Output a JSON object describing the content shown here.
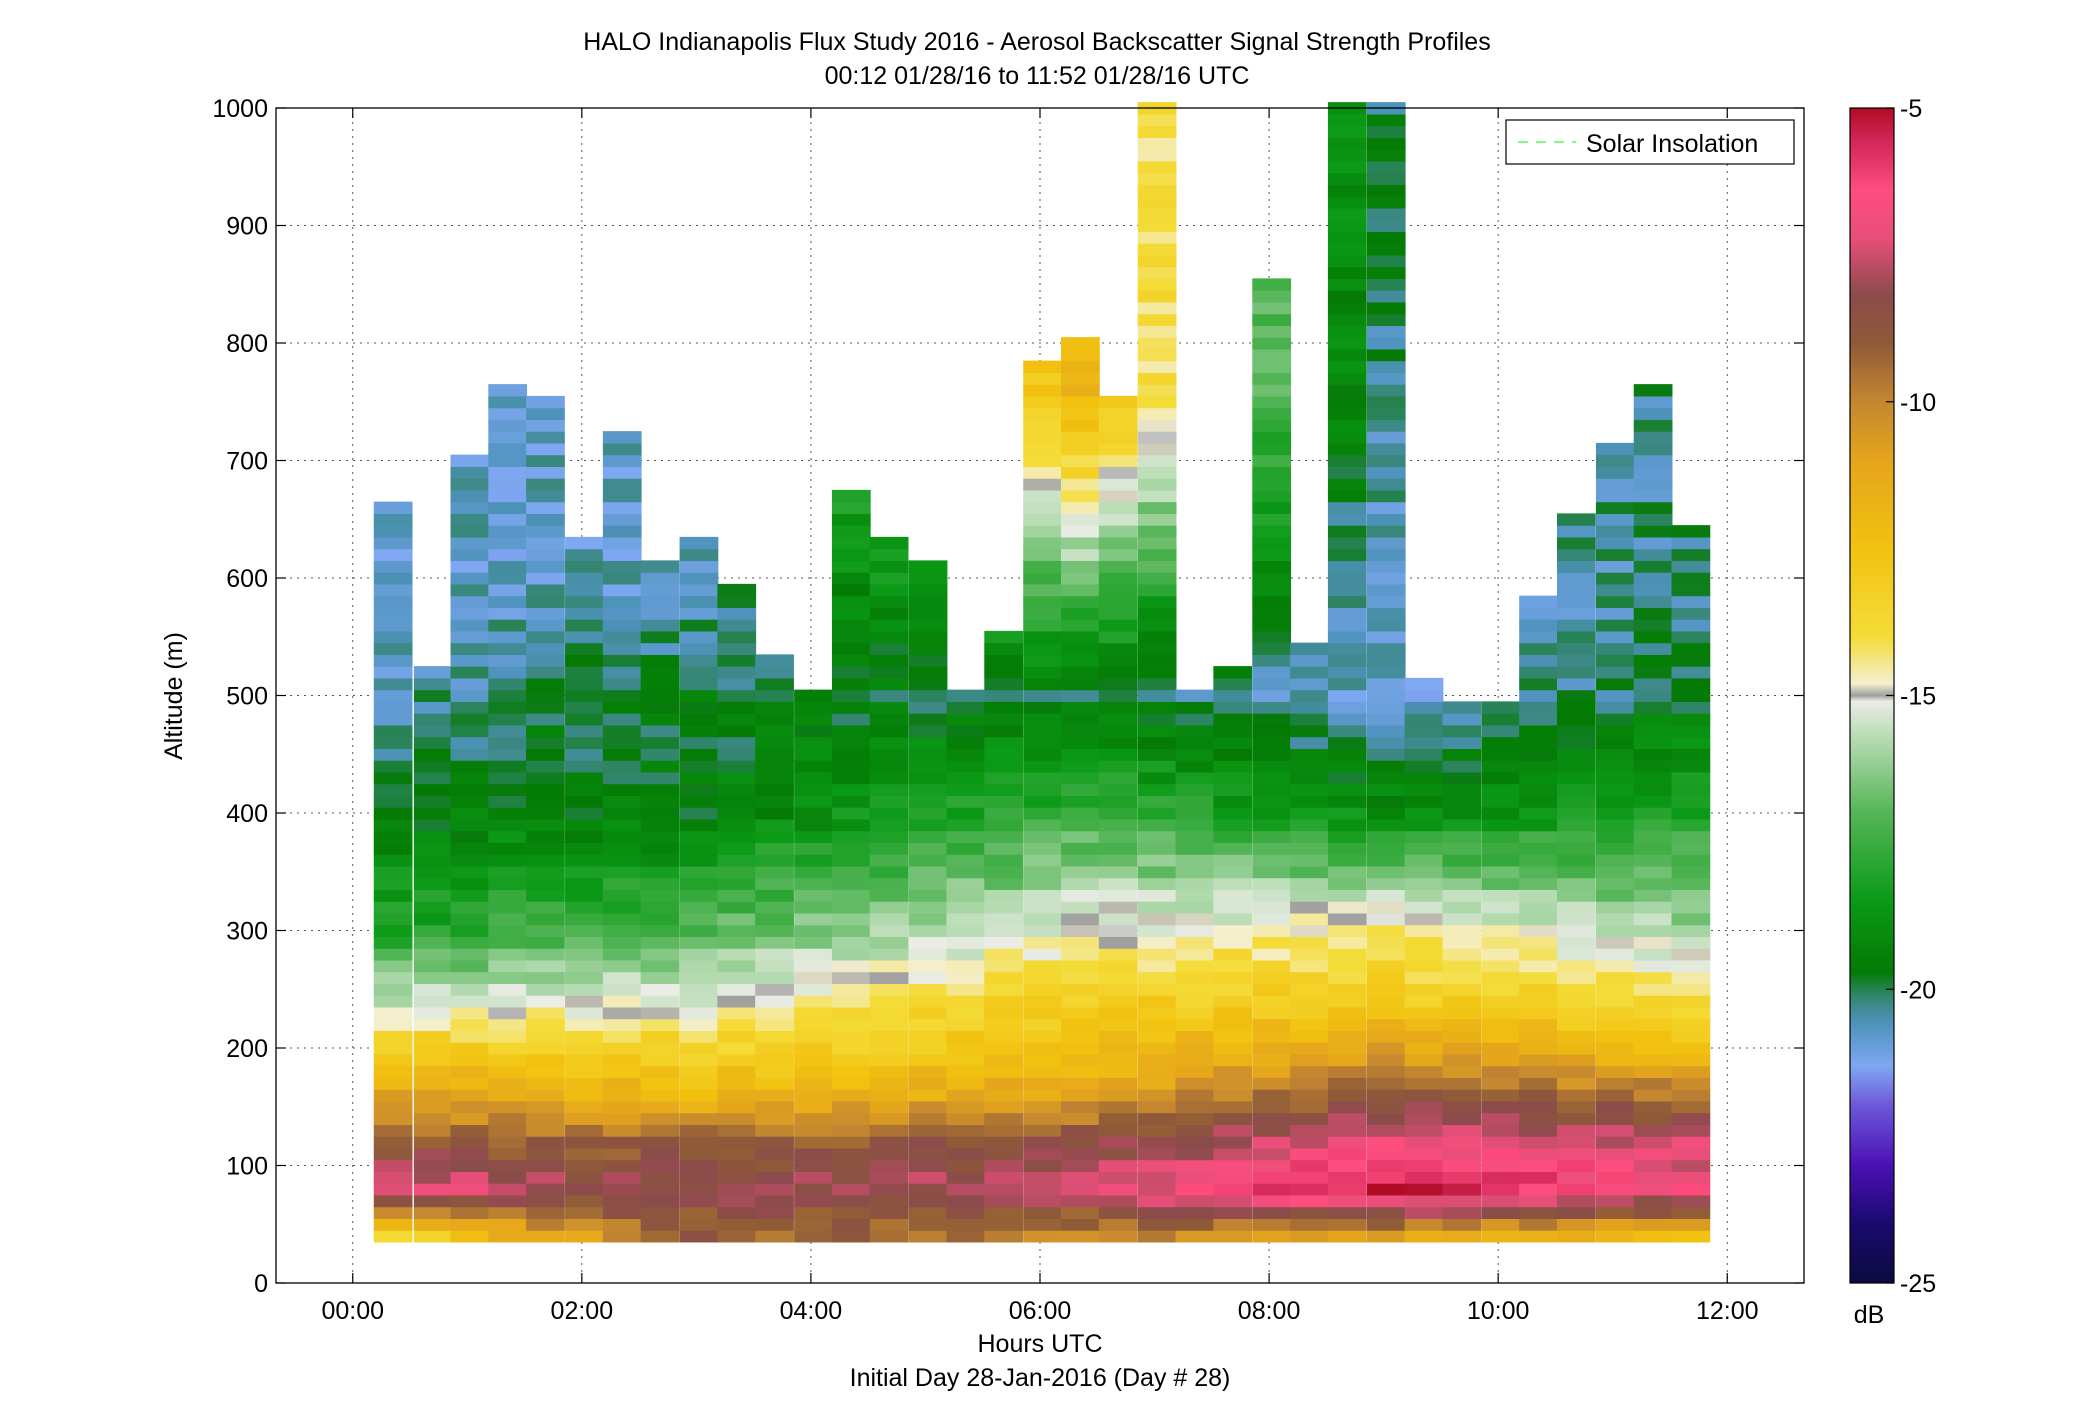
{
  "figure": {
    "title_line1": "HALO Indianapolis Flux Study 2016 - Aerosol Backscatter Signal Strength Profiles",
    "title_line2": "00:12 01/28/16 to 11:52 01/28/16  UTC",
    "xlabel": "Hours UTC",
    "xlabel2": "Initial Day 28-Jan-2016 (Day # 28)",
    "ylabel": "Altitude (m)",
    "colorbar_unit": "dB",
    "legend_label": "Solar Insolation",
    "legend_line_color": "#7dff7d"
  },
  "chart_data": {
    "type": "heatmap",
    "x_unit": "hours UTC",
    "xlim": [
      -0.67,
      12.67
    ],
    "ylim": [
      0,
      1000
    ],
    "x_ticks": [
      0,
      2,
      4,
      6,
      8,
      10,
      12
    ],
    "x_tick_labels": [
      "00:00",
      "02:00",
      "04:00",
      "06:00",
      "08:00",
      "10:00",
      "12:00"
    ],
    "y_ticks": [
      0,
      100,
      200,
      300,
      400,
      500,
      600,
      700,
      800,
      900,
      1000
    ],
    "y_tick_labels": [
      "0",
      "100",
      "200",
      "300",
      "400",
      "500",
      "600",
      "700",
      "800",
      "900",
      "1000"
    ],
    "grid": true,
    "legend_location": "top-right",
    "colorbar": {
      "range_db": [
        -25,
        -5
      ],
      "ticks": [
        -25,
        -20,
        -15,
        -10,
        -5
      ],
      "tick_labels": [
        "-25",
        "-20",
        "-15",
        "-10",
        "-5"
      ],
      "stops": [
        {
          "db": -25,
          "color": "#0b0b3f"
        },
        {
          "db": -24,
          "color": "#1a0a6e"
        },
        {
          "db": -23,
          "color": "#4a10b4"
        },
        {
          "db": -22,
          "color": "#6d56d8"
        },
        {
          "db": -21.3,
          "color": "#7fa8f2"
        },
        {
          "db": -20.6,
          "color": "#4f93bd"
        },
        {
          "db": -20.2,
          "color": "#3a8880"
        },
        {
          "db": -19.7,
          "color": "#047a04"
        },
        {
          "db": -18.5,
          "color": "#0b9a16"
        },
        {
          "db": -17,
          "color": "#55b558"
        },
        {
          "db": -15.7,
          "color": "#b8dcb4"
        },
        {
          "db": -15.1,
          "color": "#ecece6"
        },
        {
          "db": -15,
          "color": "#9e9e9e"
        },
        {
          "db": -14.8,
          "color": "#f4efd0"
        },
        {
          "db": -14,
          "color": "#f4dc38"
        },
        {
          "db": -12.5,
          "color": "#f2c210"
        },
        {
          "db": -11,
          "color": "#e5a51c"
        },
        {
          "db": -10,
          "color": "#c48730"
        },
        {
          "db": -9,
          "color": "#8e5a38"
        },
        {
          "db": -8.2,
          "color": "#8b4b4b"
        },
        {
          "db": -7.2,
          "color": "#e84e7a"
        },
        {
          "db": -6.4,
          "color": "#ff4d80"
        },
        {
          "db": -5.6,
          "color": "#d4285a"
        },
        {
          "db": -5,
          "color": "#b00c26"
        }
      ]
    },
    "times_hours": [
      0.35,
      0.7,
      1.02,
      1.35,
      1.68,
      2.02,
      2.35,
      2.68,
      3.02,
      3.35,
      3.68,
      4.02,
      4.35,
      4.68,
      5.02,
      5.35,
      5.68,
      6.02,
      6.35,
      6.68,
      7.02,
      7.35,
      7.68,
      8.02,
      8.35,
      8.68,
      9.02,
      9.35,
      9.68,
      10.02,
      10.35,
      10.68,
      11.02,
      11.35,
      11.68
    ],
    "profile_tops_m": [
      665,
      520,
      700,
      765,
      755,
      630,
      725,
      615,
      630,
      590,
      535,
      500,
      670,
      630,
      615,
      505,
      555,
      785,
      800,
      750,
      1000,
      505,
      525,
      850,
      540,
      1000,
      1000,
      515,
      495,
      495,
      580,
      650,
      715,
      760,
      640
    ],
    "sample_profiles_db": [
      {
        "time_hours": 0.35,
        "altitude_m": [
          40,
          80,
          120,
          160,
          200,
          240,
          300,
          400,
          500,
          600
        ],
        "db": [
          -13.5,
          -7,
          -9,
          -11,
          -13,
          -15.5,
          -18,
          -19.5,
          -20.5,
          -20.8
        ]
      },
      {
        "time_hours": 3.02,
        "altitude_m": [
          40,
          80,
          120,
          160,
          200,
          240,
          300,
          400,
          500,
          600
        ],
        "db": [
          -9,
          -8.3,
          -9,
          -12,
          -13.5,
          -15,
          -17,
          -19.5,
          -19.8,
          -20.7
        ]
      },
      {
        "time_hours": 6.35,
        "altitude_m": [
          40,
          80,
          120,
          160,
          200,
          240,
          300,
          400,
          500,
          750
        ],
        "db": [
          -10,
          -7.5,
          -8.5,
          -11,
          -12.5,
          -13.2,
          -15,
          -17.5,
          -19.8,
          -12
        ]
      },
      {
        "time_hours": 9.02,
        "altitude_m": [
          40,
          80,
          120,
          160,
          200,
          240,
          300,
          400,
          500,
          900
        ],
        "db": [
          -11,
          -5.2,
          -6.8,
          -9,
          -11,
          -13,
          -14.5,
          -19,
          -21,
          -20
        ]
      },
      {
        "time_hours": 11.68,
        "altitude_m": [
          40,
          80,
          120,
          160,
          200,
          240,
          300,
          400,
          500,
          600
        ],
        "db": [
          -12,
          -6.8,
          -7.5,
          -9.5,
          -12.5,
          -13.5,
          -16,
          -18,
          -19.8,
          -20.3
        ]
      }
    ]
  }
}
